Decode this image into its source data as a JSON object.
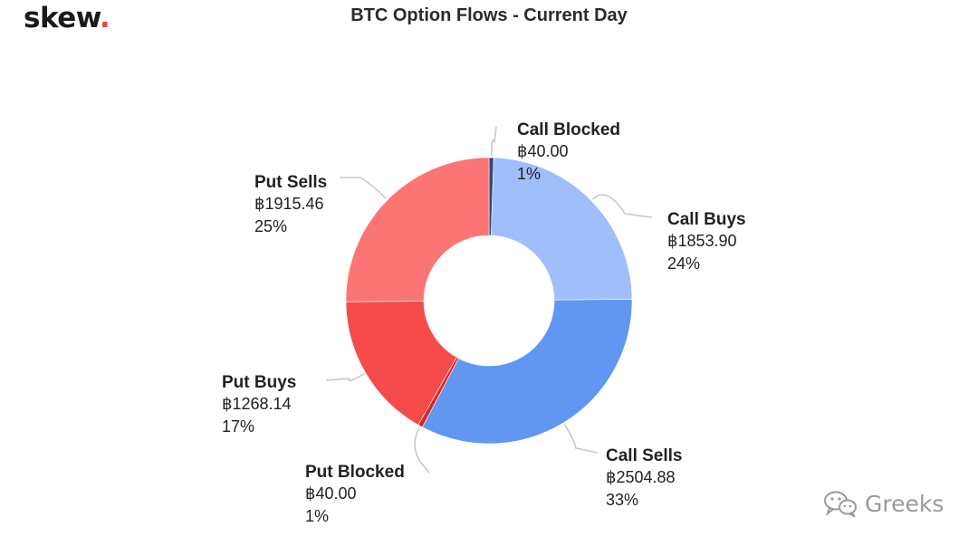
{
  "header": {
    "logo_text": "skew",
    "logo_dot": ".",
    "title": "BTC Option Flows - Current Day"
  },
  "watermark": {
    "icon": "wechat-icon",
    "text": "Greeks"
  },
  "colors": {
    "call_blocked": "#2f4a7a",
    "call_buys": "#9fbefa",
    "call_sells": "#6196f1",
    "put_blocked": "#d92727",
    "put_buys": "#f54b4b",
    "put_sells": "#fb7575",
    "connector": "#c8c8c8"
  },
  "chart_data": {
    "type": "pie",
    "variant": "donut",
    "title": "BTC Option Flows - Current Day",
    "slices": [
      {
        "name": "Call Blocked",
        "value": 40.0,
        "value_label": "฿40.00",
        "percent_label": "1%"
      },
      {
        "name": "Call Buys",
        "value": 1853.9,
        "value_label": "฿1853.90",
        "percent_label": "24%"
      },
      {
        "name": "Call Sells",
        "value": 2504.88,
        "value_label": "฿2504.88",
        "percent_label": "33%"
      },
      {
        "name": "Put Blocked",
        "value": 40.0,
        "value_label": "฿40.00",
        "percent_label": "1%"
      },
      {
        "name": "Put Buys",
        "value": 1268.14,
        "value_label": "฿1268.14",
        "percent_label": "17%"
      },
      {
        "name": "Put Sells",
        "value": 1915.46,
        "value_label": "฿1915.46",
        "percent_label": "25%"
      }
    ]
  }
}
